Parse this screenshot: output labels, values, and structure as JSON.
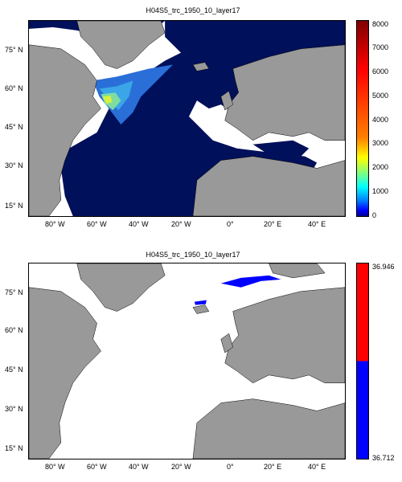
{
  "top_panel": {
    "title": "H04S5_trc_1950_10_layer17",
    "colorbar_ticks": [
      "8000",
      "7000",
      "6000",
      "5000",
      "4000",
      "3000",
      "2000",
      "1000",
      "0"
    ],
    "colorbar_colors": [
      "#7f0000",
      "#ff0000",
      "#ff8000",
      "#ffff00",
      "#80ff80",
      "#00ffff",
      "#0080ff",
      "#0000ff",
      "#00008f"
    ]
  },
  "bottom_panel": {
    "title": "H04S5_trc_1950_10_layer17",
    "colorbar_ticks": [
      "36.946",
      "36.712"
    ],
    "colorbar_colors": [
      "#ff0000",
      "#0000ff"
    ]
  },
  "lat_labels": [
    "75° N",
    "60° N",
    "45° N",
    "30° N",
    "15° N"
  ],
  "lon_labels": [
    "80° W",
    "60° W",
    "40° W",
    "20° W",
    "0°",
    "20° E",
    "40° E"
  ],
  "colors": {
    "land": "#999999",
    "ocean_field": "#00105a",
    "empty": "#ffffff"
  }
}
